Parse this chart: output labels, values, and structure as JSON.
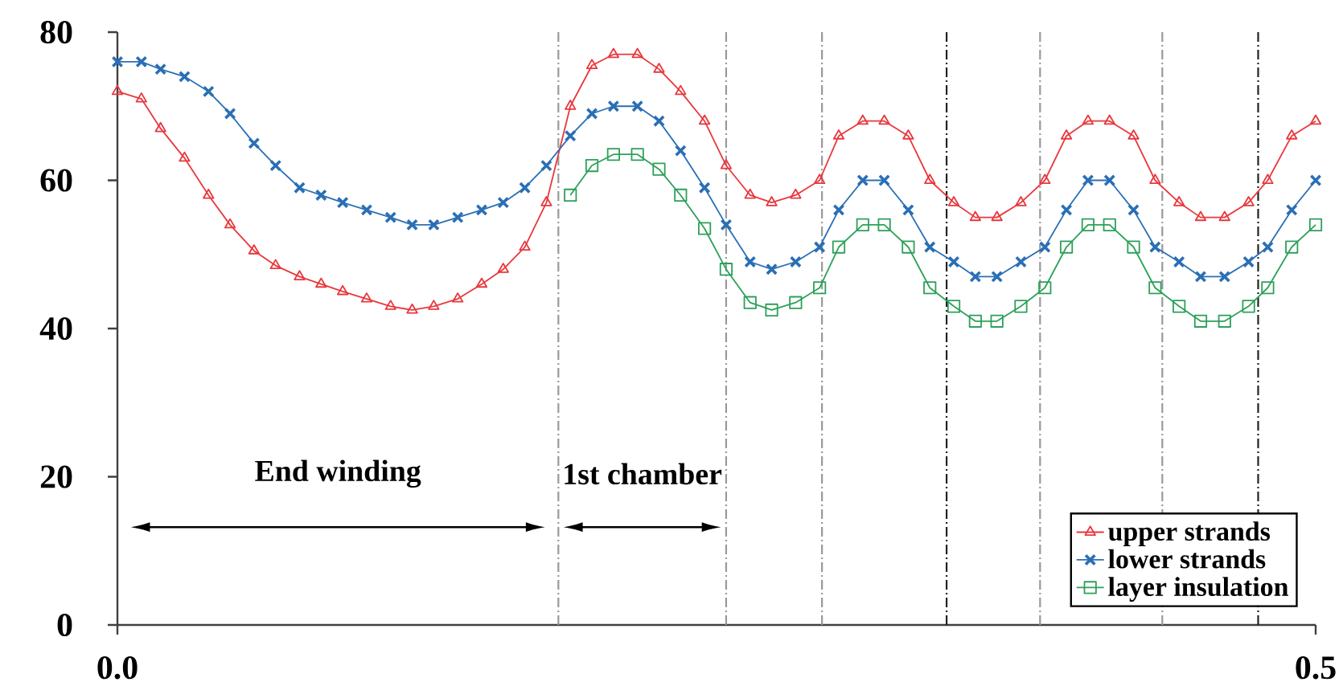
{
  "chart_data": {
    "type": "line",
    "x": [
      0,
      0.01,
      0.018,
      0.028,
      0.038,
      0.047,
      0.057,
      0.066,
      0.076,
      0.085,
      0.094,
      0.104,
      0.114,
      0.123,
      0.132,
      0.142,
      0.152,
      0.161,
      0.17,
      0.179,
      0.189,
      0.198,
      0.207,
      0.217,
      0.226,
      0.235,
      0.245,
      0.254,
      0.264,
      0.273,
      0.283,
      0.293,
      0.301,
      0.311,
      0.32,
      0.33,
      0.339,
      0.349,
      0.358,
      0.367,
      0.377,
      0.387,
      0.396,
      0.405,
      0.414,
      0.424,
      0.433,
      0.443,
      0.452,
      0.462,
      0.472,
      0.48,
      0.49,
      0.5
    ],
    "series": [
      {
        "name": "upper strands",
        "color": "#e8383d",
        "marker": "triangle",
        "values": [
          72,
          71,
          67,
          63,
          58,
          54,
          50.5,
          48.5,
          47,
          46,
          45,
          44,
          43,
          42.5,
          43,
          44,
          46,
          48,
          51,
          57,
          70,
          75.5,
          77,
          77,
          75,
          72,
          68,
          62,
          58,
          57,
          58,
          60,
          66,
          68,
          68,
          66,
          60,
          57,
          55,
          55,
          57,
          60,
          66,
          68,
          68,
          66,
          60,
          57,
          55,
          55,
          57,
          60,
          66,
          68
        ]
      },
      {
        "name": "lower strands",
        "color": "#2a6fb5",
        "marker": "cross",
        "values": [
          76,
          76,
          75,
          74,
          72,
          69,
          65,
          62,
          59,
          58,
          57,
          56,
          55,
          54,
          54,
          55,
          56,
          57,
          59,
          62,
          66,
          69,
          70,
          70,
          68,
          64,
          59,
          54,
          49,
          48,
          49,
          51,
          56,
          60,
          60,
          56,
          51,
          49,
          47,
          47,
          49,
          51,
          56,
          60,
          60,
          56,
          51,
          49,
          47,
          47,
          49,
          51,
          56,
          60
        ]
      },
      {
        "name": "layer insulation",
        "color": "#2ca05a",
        "marker": "square",
        "values": [
          null,
          null,
          null,
          null,
          null,
          null,
          null,
          null,
          null,
          null,
          null,
          null,
          null,
          null,
          null,
          null,
          null,
          null,
          null,
          null,
          58,
          62,
          63.5,
          63.5,
          61.5,
          58,
          53.5,
          48,
          43.5,
          42.5,
          43.5,
          45.5,
          51,
          54,
          54,
          51,
          45.5,
          43,
          41,
          41,
          43,
          45.5,
          51,
          54,
          54,
          51,
          45.5,
          43,
          41,
          41,
          43,
          45.5,
          51,
          54
        ]
      }
    ],
    "xlim": [
      0,
      0.5
    ],
    "xticks": [
      {
        "value": 0,
        "label": "0.0"
      },
      0.5
    ],
    "ylim": [
      0,
      80
    ],
    "yticks": [
      0,
      20,
      40,
      60,
      80
    ],
    "ref_lines": [
      {
        "axis": "x",
        "value": 0.184,
        "color": "#999999",
        "line_style": "dashed"
      },
      {
        "axis": "x",
        "value": 0.254,
        "color": "#999999",
        "line_style": "dashed"
      },
      {
        "axis": "x",
        "value": 0.294,
        "color": "#999999",
        "line_style": "dashed"
      },
      {
        "axis": "x",
        "value": 0.346,
        "color": "#222222",
        "line_style": "dashed"
      },
      {
        "axis": "x",
        "value": 0.385,
        "color": "#999999",
        "line_style": "dashed"
      },
      {
        "axis": "x",
        "value": 0.436,
        "color": "#999999",
        "line_style": "dashed"
      },
      {
        "axis": "x",
        "value": 0.476,
        "color": "#222222",
        "line_style": "dashed"
      }
    ],
    "annotations": [
      "End winding",
      "1st chamber"
    ],
    "legend": "bottom right",
    "grid": false,
    "line_style": "solid"
  }
}
